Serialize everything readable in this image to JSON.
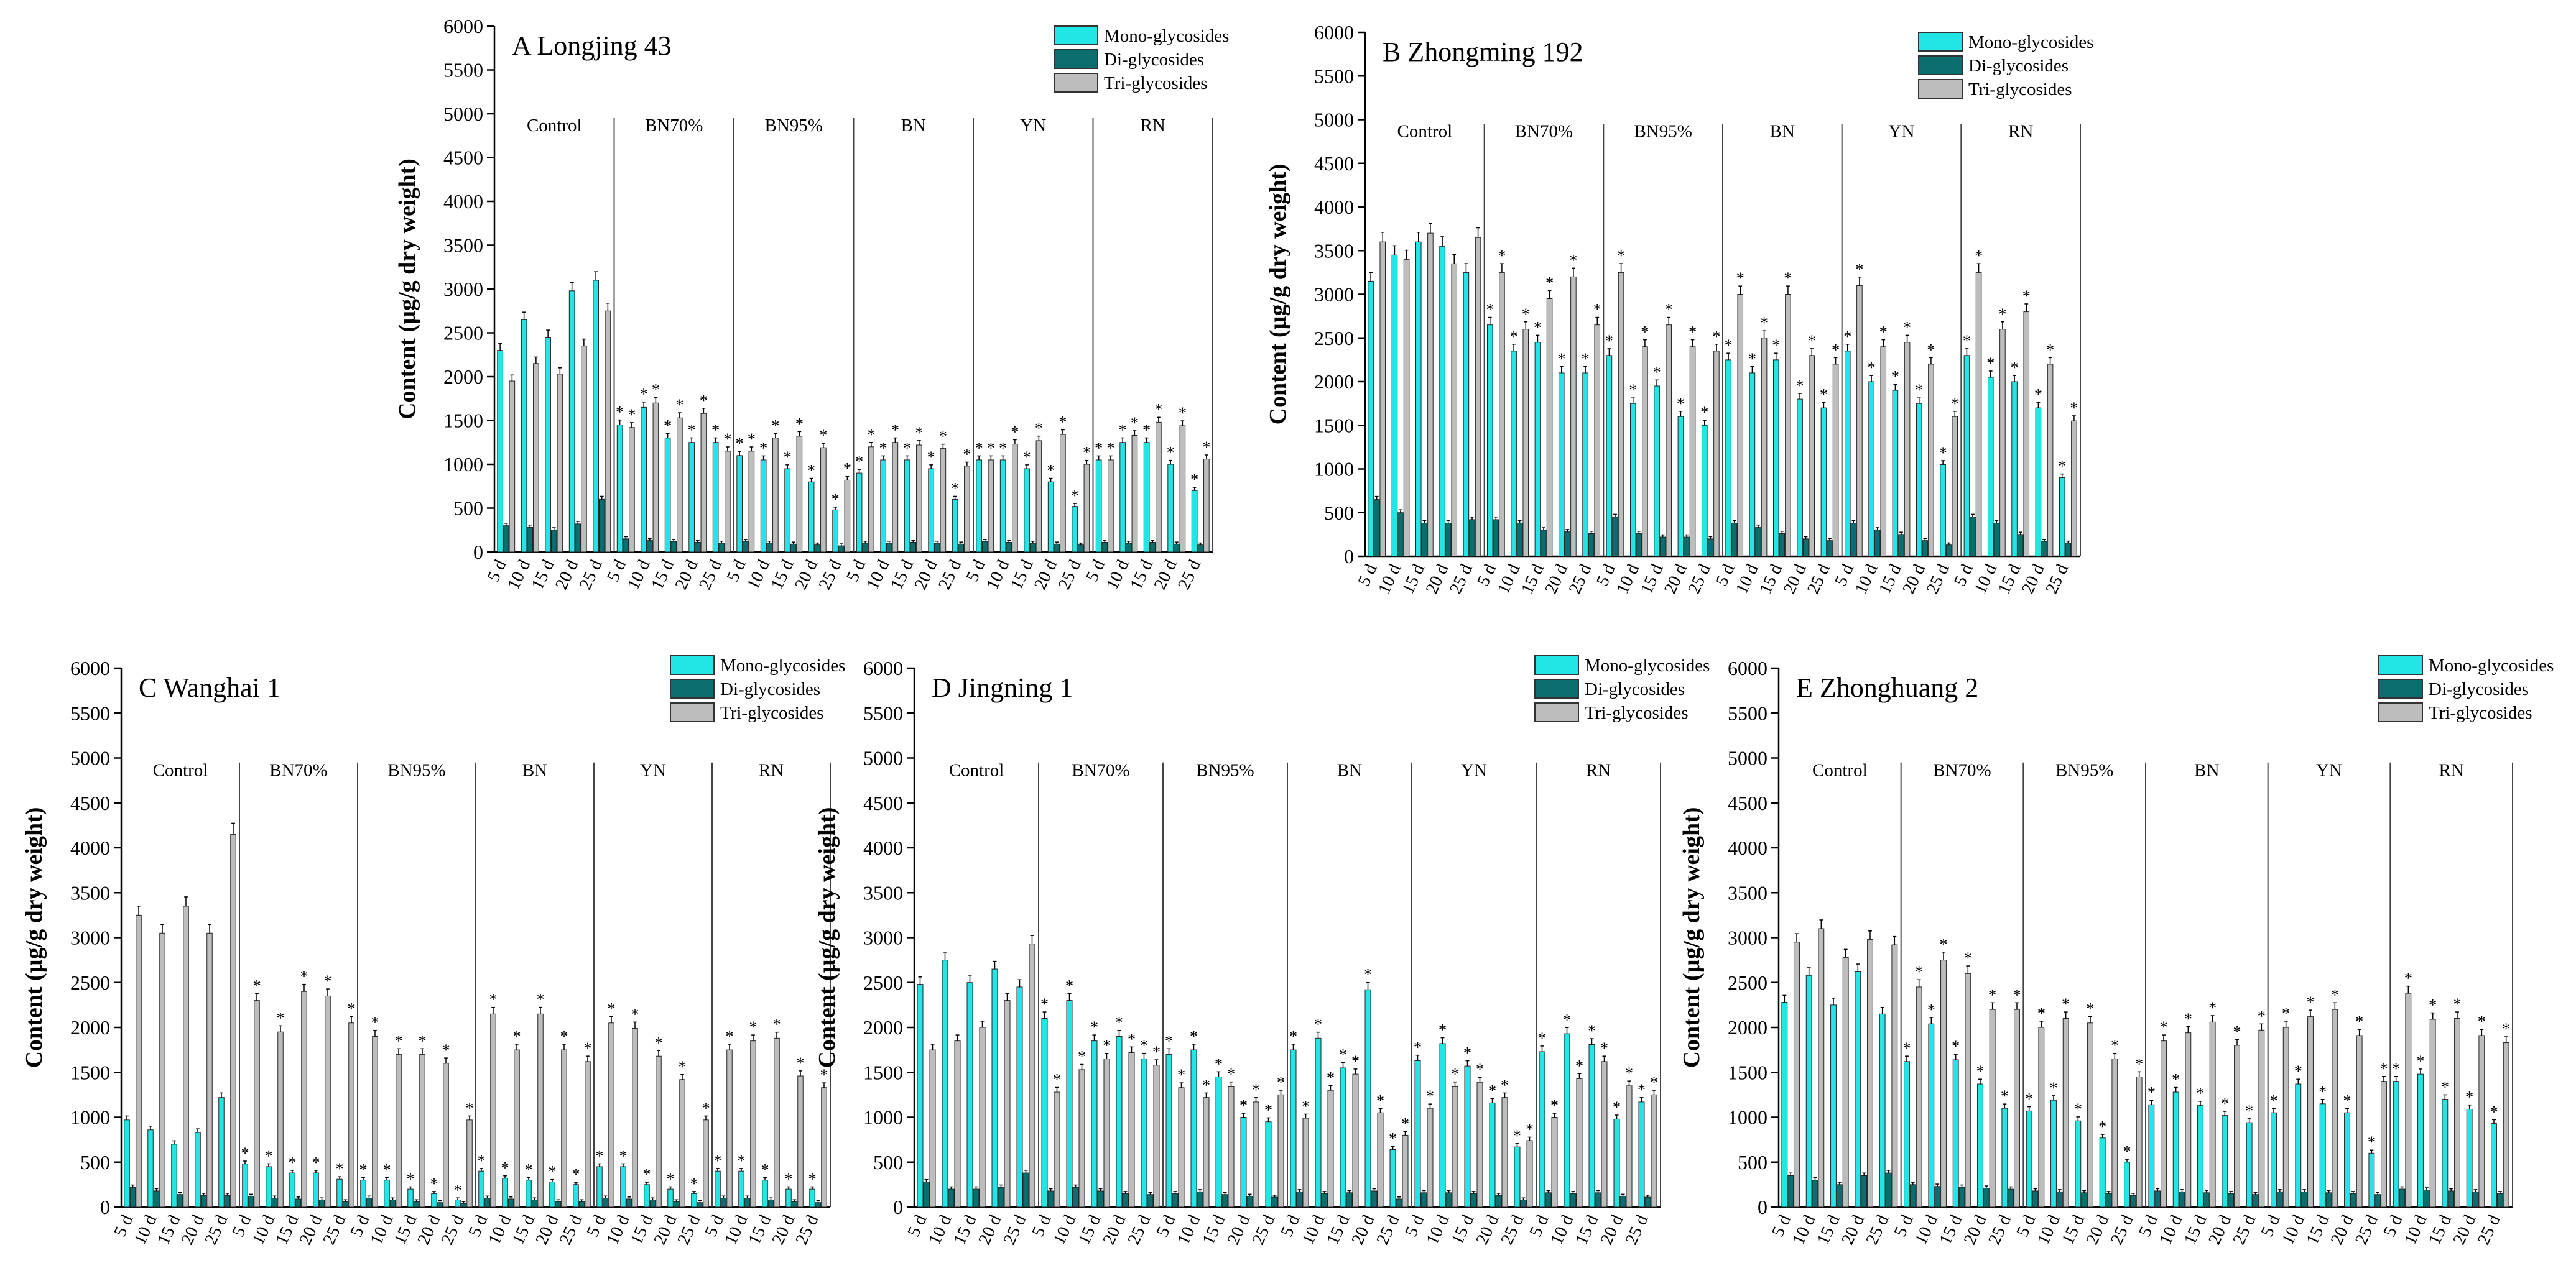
{
  "figure": {
    "legend_labels": [
      "Mono-glycosides",
      "Di-glycosides",
      "Tri-glycosides"
    ],
    "groups": [
      "Control",
      "BN70%",
      "BN95%",
      "BN",
      "YN",
      "RN"
    ],
    "days": [
      "5 d",
      "10 d",
      "15 d",
      "20 d",
      "25 d"
    ],
    "ylabel": "Content (µg/g dry weight)",
    "significance_mark": "*",
    "colors": {
      "mono": "#22e6e6",
      "di": "#0b6e6e",
      "tri": "#bdbdbd"
    }
  },
  "chart_data": [
    {
      "panel": "A",
      "title": "A  Longjing 43",
      "type": "bar",
      "ylabel": "Content (µg/g dry weight)",
      "ylim": [
        0,
        6000
      ],
      "yticks": [
        0,
        500,
        1000,
        1500,
        2000,
        2500,
        3000,
        3500,
        4000,
        4500,
        5000,
        5500,
        6000
      ],
      "groups": [
        "Control",
        "BN70%",
        "BN95%",
        "BN",
        "YN",
        "RN"
      ],
      "categories": [
        "5 d",
        "10 d",
        "15 d",
        "20 d",
        "25 d"
      ],
      "series": [
        {
          "name": "Mono-glycosides",
          "values": [
            [
              2300,
              2650,
              2450,
              2980,
              3100
            ],
            [
              1450,
              1650,
              1300,
              1250,
              1250
            ],
            [
              1100,
              1050,
              950,
              800,
              480
            ],
            [
              900,
              1050,
              1050,
              950,
              600
            ],
            [
              1050,
              1050,
              950,
              800,
              520
            ],
            [
              1050,
              1250,
              1250,
              1000,
              700
            ]
          ]
        },
        {
          "name": "Di-glycosides",
          "values": [
            [
              300,
              280,
              250,
              320,
              600
            ],
            [
              150,
              130,
              120,
              110,
              100
            ],
            [
              120,
              100,
              90,
              80,
              70
            ],
            [
              100,
              100,
              110,
              100,
              90
            ],
            [
              120,
              110,
              100,
              90,
              80
            ],
            [
              110,
              100,
              110,
              90,
              80
            ]
          ]
        },
        {
          "name": "Tri-glycosides",
          "values": [
            [
              1950,
              2150,
              2030,
              2350,
              2750
            ],
            [
              1420,
              1700,
              1530,
              1580,
              1150
            ],
            [
              1150,
              1300,
              1320,
              1190,
              820
            ],
            [
              1200,
              1250,
              1220,
              1180,
              980
            ],
            [
              1050,
              1230,
              1270,
              1340,
              1000
            ],
            [
              1050,
              1330,
              1480,
              1440,
              1060
            ]
          ]
        }
      ]
    },
    {
      "panel": "B",
      "title": "B  Zhongming 192",
      "type": "bar",
      "ylabel": "Content (µg/g dry weight)",
      "ylim": [
        0,
        6000
      ],
      "yticks": [
        0,
        500,
        1000,
        1500,
        2000,
        2500,
        3000,
        3500,
        4000,
        4500,
        5000,
        5500,
        6000
      ],
      "groups": [
        "Control",
        "BN70%",
        "BN95%",
        "BN",
        "YN",
        "RN"
      ],
      "categories": [
        "5 d",
        "10 d",
        "15 d",
        "20 d",
        "25 d"
      ],
      "series": [
        {
          "name": "Mono-glycosides",
          "values": [
            [
              3150,
              3450,
              3600,
              3550,
              3250
            ],
            [
              2650,
              2350,
              2450,
              2100,
              2100
            ],
            [
              2300,
              1750,
              1950,
              1600,
              1500
            ],
            [
              2250,
              2100,
              2250,
              1800,
              1700
            ],
            [
              2350,
              2000,
              1900,
              1750,
              1050
            ],
            [
              2300,
              2050,
              2000,
              1700,
              900
            ]
          ]
        },
        {
          "name": "Di-glycosides",
          "values": [
            [
              650,
              500,
              380,
              380,
              420
            ],
            [
              420,
              380,
              300,
              280,
              260
            ],
            [
              450,
              260,
              220,
              220,
              200
            ],
            [
              380,
              330,
              260,
              200,
              180
            ],
            [
              380,
              300,
              250,
              180,
              130
            ],
            [
              450,
              380,
              250,
              170,
              150
            ]
          ]
        },
        {
          "name": "Tri-glycosides",
          "values": [
            [
              3600,
              3400,
              3700,
              3350,
              3650
            ],
            [
              3250,
              2600,
              2950,
              3200,
              2650
            ],
            [
              3250,
              2400,
              2650,
              2400,
              2350
            ],
            [
              3000,
              2500,
              3000,
              2300,
              2200
            ],
            [
              3100,
              2400,
              2450,
              2200,
              1600
            ],
            [
              3250,
              2600,
              2800,
              2200,
              1550
            ]
          ]
        }
      ]
    },
    {
      "panel": "C",
      "title": "C  Wanghai 1",
      "type": "bar",
      "ylabel": "Content (µg/g dry weight)",
      "ylim": [
        0,
        6000
      ],
      "yticks": [
        0,
        500,
        1000,
        1500,
        2000,
        2500,
        3000,
        3500,
        4000,
        4500,
        5000,
        5500,
        6000
      ],
      "groups": [
        "Control",
        "BN70%",
        "BN95%",
        "BN",
        "YN",
        "RN"
      ],
      "categories": [
        "5 d",
        "10 d",
        "15 d",
        "20 d",
        "25 d"
      ],
      "series": [
        {
          "name": "Mono-glycosides",
          "values": [
            [
              970,
              860,
              700,
              830,
              1220
            ],
            [
              480,
              450,
              380,
              380,
              310
            ],
            [
              300,
              300,
              200,
              150,
              80
            ],
            [
              400,
              320,
              300,
              280,
              250
            ],
            [
              450,
              450,
              250,
              200,
              150
            ],
            [
              400,
              400,
              300,
              200,
              200
            ]
          ]
        },
        {
          "name": "Di-glycosides",
          "values": [
            [
              220,
              180,
              140,
              130,
              130
            ],
            [
              120,
              100,
              90,
              80,
              60
            ],
            [
              100,
              80,
              60,
              50,
              40
            ],
            [
              100,
              90,
              80,
              60,
              60
            ],
            [
              100,
              90,
              80,
              60,
              50
            ],
            [
              100,
              100,
              80,
              60,
              50
            ]
          ]
        },
        {
          "name": "Tri-glycosides",
          "values": [
            [
              3250,
              3050,
              3350,
              3050,
              4150
            ],
            [
              2300,
              1950,
              2400,
              2350,
              2050
            ],
            [
              1900,
              1700,
              1700,
              1600,
              970
            ],
            [
              2150,
              1750,
              2150,
              1750,
              1620
            ],
            [
              2050,
              1990,
              1680,
              1420,
              970
            ],
            [
              1750,
              1850,
              1880,
              1460,
              1330
            ]
          ]
        }
      ]
    },
    {
      "panel": "D",
      "title": "D  Jingning 1",
      "type": "bar",
      "ylabel": "Content (µg/g dry weight)",
      "ylim": [
        0,
        6000
      ],
      "yticks": [
        0,
        500,
        1000,
        1500,
        2000,
        2500,
        3000,
        3500,
        4000,
        4500,
        5000,
        5500,
        6000
      ],
      "groups": [
        "Control",
        "BN70%",
        "BN95%",
        "BN",
        "YN",
        "RN"
      ],
      "categories": [
        "5 d",
        "10 d",
        "15 d",
        "20 d",
        "25 d"
      ],
      "series": [
        {
          "name": "Mono-glycosides",
          "values": [
            [
              2480,
              2750,
              2500,
              2650,
              2450
            ],
            [
              2100,
              2300,
              1850,
              1900,
              1650
            ],
            [
              1700,
              1750,
              1450,
              1000,
              950
            ],
            [
              1750,
              1880,
              1550,
              2420,
              640
            ],
            [
              1630,
              1820,
              1570,
              1160,
              670
            ],
            [
              1730,
              1930,
              1810,
              980,
              1170
            ]
          ]
        },
        {
          "name": "Di-glycosides",
          "values": [
            [
              280,
              200,
              200,
              220,
              380
            ],
            [
              180,
              220,
              180,
              150,
              140
            ],
            [
              150,
              170,
              140,
              120,
              110
            ],
            [
              170,
              150,
              160,
              180,
              90
            ],
            [
              160,
              160,
              150,
              130,
              80
            ],
            [
              160,
              150,
              160,
              120,
              110
            ]
          ]
        },
        {
          "name": "Tri-glycosides",
          "values": [
            [
              1750,
              1850,
              2000,
              2300,
              2930
            ],
            [
              1280,
              1530,
              1650,
              1720,
              1580
            ],
            [
              1330,
              1220,
              1340,
              1170,
              1250
            ],
            [
              990,
              1300,
              1480,
              1050,
              800
            ],
            [
              1100,
              1340,
              1390,
              1220,
              740
            ],
            [
              1000,
              1430,
              1620,
              1350,
              1250
            ]
          ]
        }
      ]
    },
    {
      "panel": "E",
      "title": "E  Zhonghuang 2",
      "type": "bar",
      "ylabel": "Content (µg/g dry weight)",
      "ylim": [
        0,
        6000
      ],
      "yticks": [
        0,
        500,
        1000,
        1500,
        2000,
        2500,
        3000,
        3500,
        4000,
        4500,
        5000,
        5500,
        6000
      ],
      "groups": [
        "Control",
        "BN70%",
        "BN95%",
        "BN",
        "YN",
        "RN"
      ],
      "categories": [
        "5 d",
        "10 d",
        "15 d",
        "20 d",
        "25 d"
      ],
      "series": [
        {
          "name": "Mono-glycosides",
          "values": [
            [
              2280,
              2580,
              2250,
              2620,
              2150
            ],
            [
              1620,
              2040,
              1640,
              1370,
              1100
            ],
            [
              1070,
              1190,
              960,
              770,
              500
            ],
            [
              1140,
              1280,
              1130,
              1020,
              940
            ],
            [
              1050,
              1370,
              1150,
              1050,
              600
            ],
            [
              1400,
              1480,
              1200,
              1090,
              930
            ]
          ]
        },
        {
          "name": "Di-glycosides",
          "values": [
            [
              350,
              300,
              250,
              350,
              380
            ],
            [
              250,
              230,
              220,
              210,
              200
            ],
            [
              180,
              170,
              160,
              150,
              130
            ],
            [
              180,
              170,
              160,
              150,
              140
            ],
            [
              170,
              170,
              160,
              150,
              140
            ],
            [
              200,
              190,
              180,
              170,
              150
            ]
          ]
        },
        {
          "name": "Tri-glycosides",
          "values": [
            [
              2950,
              3100,
              2780,
              2980,
              2920
            ],
            [
              2450,
              2750,
              2600,
              2200,
              2200
            ],
            [
              2000,
              2100,
              2050,
              1650,
              1450
            ],
            [
              1850,
              1940,
              2060,
              1800,
              1970
            ],
            [
              2000,
              2120,
              2200,
              1910,
              1400
            ],
            [
              2380,
              2090,
              2100,
              1910,
              1830
            ]
          ]
        }
      ]
    }
  ]
}
